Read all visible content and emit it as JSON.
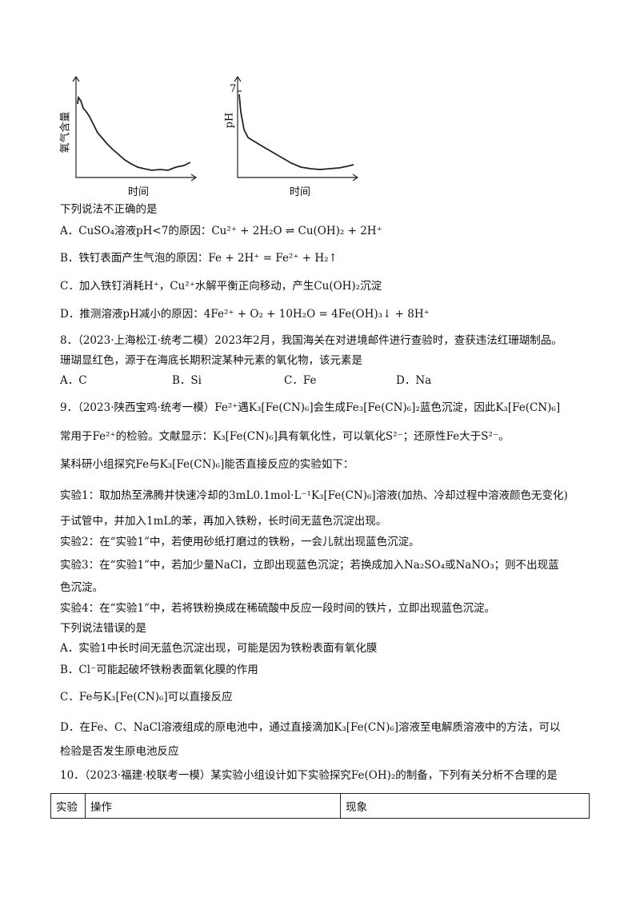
{
  "figure": {
    "left": {
      "y_label": "氧气含量",
      "x_label": "时间"
    },
    "right": {
      "y_label": "pH",
      "y_tick": "7",
      "x_label": "时间"
    }
  },
  "lines": [
    "下列说法不正确的是",
    "A．CuSO₄溶液pH<7的原因：Cu²⁺ + 2H₂O ⇌ Cu(OH)₂ + 2H⁺",
    "B．铁钉表面产生气泡的原因：Fe + 2H⁺ = Fe²⁺ + H₂↑",
    "C．加入铁钉消耗H⁺，Cu²⁺水解平衡正向移动，产生Cu(OH)₂沉淀",
    "D．推测溶液pH减小的原因：4Fe²⁺ + O₂ + 10H₂O = 4Fe(OH)₃↓ + 8H⁺",
    "8．（2023·上海松江·统考二模）2023年2月，我国海关在对进境邮件进行查验时，查获违法红珊瑚制品。",
    "珊瑚显红色，源于在海底长期积淀某种元素的氧化物，该元素是"
  ],
  "q8_options": [
    "A．C",
    "B．Si",
    "C．Fe",
    "D．Na"
  ],
  "lines2": [
    "9．（2023·陕西宝鸡·统考一模）Fe²⁺遇K₃[Fe(CN)₆]会生成Fe₃[Fe(CN)₆]₂蓝色沉淀，因此K₃[Fe(CN)₆]",
    "常用于Fe²⁺的检验。文献显示：K₃[Fe(CN)₆]具有氧化性，可以氧化S²⁻；还原性Fe大于S²⁻。",
    "某科研小组探究Fe与K₃[Fe(CN)₆]能否直接反应的实验如下：",
    "实验1：取加热至沸腾并快速冷却的3mL0.1mol·L⁻¹K₃[Fe(CN)₆]溶液(加热、冷却过程中溶液颜色无变化)",
    "于试管中，并加入1mL的苯，再加入铁粉，长时间无蓝色沉淀出现。",
    "实验2：在“实验1”中，若使用砂纸打磨过的铁粉，一会儿就出现蓝色沉淀。",
    "实验3：在“实验1”中，若加少量NaCl，立即出现蓝色沉淀；若换成加入Na₂SO₄或NaNO₃；则不出现蓝",
    "色沉淀。",
    "实验4：在“实验1”中，若将铁粉换成在稀硫酸中反应一段时间的铁片，立即出现蓝色沉淀。",
    "下列说法错误的是",
    "A．实验1中长时间无蓝色沉淀出现，可能是因为铁粉表面有氧化膜",
    "B．Cl⁻可能起破坏铁粉表面氧化膜的作用",
    "C．Fe与K₃[Fe(CN)₆]可以直接反应",
    "D．在Fe、C、NaCl溶液组成的原电池中，通过直接滴加K₃[Fe(CN)₆]溶液至电解质溶液中的方法，可以",
    "检验是否发生原电池反应",
    "10．（2023·福建·校联考一模）某实验小组设计如下实验探究Fe(OH)₂的制备，下列有关分析不合理的是"
  ],
  "table": {
    "header": [
      "实验",
      "操作",
      "现象"
    ]
  }
}
